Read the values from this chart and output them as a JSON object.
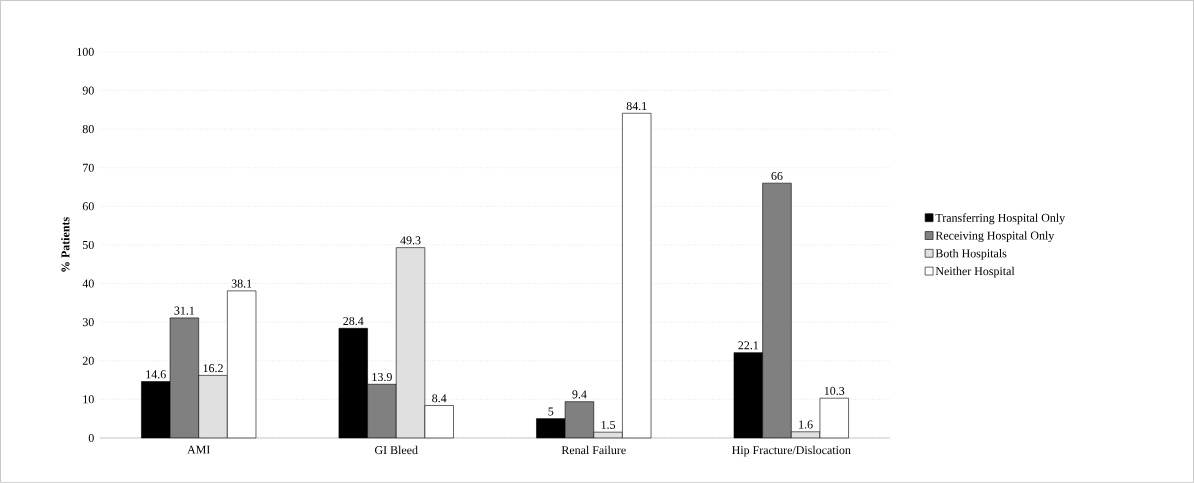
{
  "chart_data": {
    "type": "bar",
    "ylabel": "% Patients",
    "categories": [
      "AMI",
      "GI Bleed",
      "Renal Failure",
      "Hip Fracture/Dislocation"
    ],
    "series": [
      {
        "name": "Transferring Hospital Only",
        "color": "#000000",
        "values": [
          14.6,
          28.4,
          5,
          22.1
        ]
      },
      {
        "name": "Receiving Hospital Only",
        "color": "#808080",
        "values": [
          31.1,
          13.9,
          9.4,
          66
        ]
      },
      {
        "name": "Both Hospitals",
        "color": "#e0e0e0",
        "values": [
          16.2,
          49.3,
          1.5,
          1.6
        ]
      },
      {
        "name": "Neither Hospital",
        "color": "#ffffff",
        "values": [
          38.1,
          8.4,
          84.1,
          10.3
        ]
      }
    ],
    "ylim": [
      0,
      100
    ],
    "yticks": [
      0,
      10,
      20,
      30,
      40,
      50,
      60,
      70,
      80,
      90,
      100
    ],
    "grid": "y",
    "legend": "right",
    "data_labels": true
  }
}
